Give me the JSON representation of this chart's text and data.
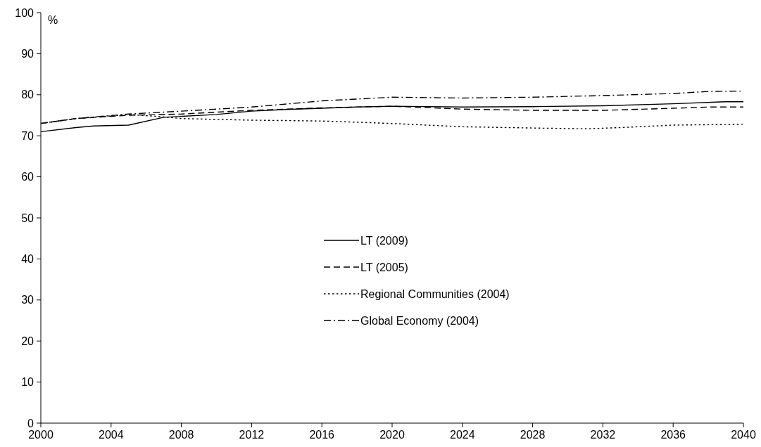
{
  "chart_data": {
    "type": "line",
    "ylabel": "%",
    "xlim": [
      2000,
      2040
    ],
    "xticks": [
      2000,
      2004,
      2008,
      2012,
      2016,
      2020,
      2024,
      2028,
      2032,
      2036,
      2040
    ],
    "ylim": [
      0,
      100
    ],
    "yticks": [
      0,
      10,
      20,
      30,
      40,
      50,
      60,
      70,
      80,
      90,
      100
    ],
    "grid": false,
    "legend": "center",
    "series": [
      {
        "name": "LT (2009)",
        "color": "#000000",
        "line_style": "solid",
        "x": [
          2000,
          2002,
          2003,
          2005,
          2007,
          2010,
          2012,
          2014,
          2016,
          2018,
          2020,
          2024,
          2028,
          2032,
          2036,
          2039,
          2040
        ],
        "values": [
          71,
          72,
          72.4,
          72.6,
          74.5,
          75.2,
          76,
          76.4,
          76.7,
          77,
          77.2,
          77,
          77.1,
          77.3,
          77.8,
          78.3,
          78.3
        ]
      },
      {
        "name": "LT (2005)",
        "color": "#000000",
        "line_style": "dashed",
        "x": [
          2000,
          2002,
          2005,
          2008,
          2012,
          2016,
          2020,
          2024,
          2028,
          2032,
          2036,
          2038,
          2040
        ],
        "values": [
          73,
          74.2,
          75,
          75.3,
          76.2,
          76.8,
          77.2,
          76.5,
          76.2,
          76.2,
          76.7,
          77,
          77
        ]
      },
      {
        "name": "Regional Communities (2004)",
        "color": "#000000",
        "line_style": "dotted",
        "x": [
          2000,
          2002,
          2005,
          2007,
          2008,
          2010,
          2012,
          2016,
          2020,
          2024,
          2028,
          2031,
          2033,
          2036,
          2040
        ],
        "values": [
          73,
          74.2,
          75.2,
          74.6,
          74.2,
          74,
          73.8,
          73.6,
          73,
          72.2,
          71.9,
          71.7,
          72,
          72.6,
          72.8
        ]
      },
      {
        "name": "Global Economy (2004)",
        "color": "#000000",
        "line_style": "dashdot",
        "x": [
          2000,
          2002,
          2005,
          2008,
          2012,
          2016,
          2020,
          2024,
          2028,
          2032,
          2036,
          2038,
          2040
        ],
        "values": [
          73,
          74.2,
          75.3,
          76,
          77,
          78.5,
          79.4,
          79.2,
          79.4,
          79.8,
          80.3,
          80.8,
          80.9
        ]
      }
    ]
  }
}
